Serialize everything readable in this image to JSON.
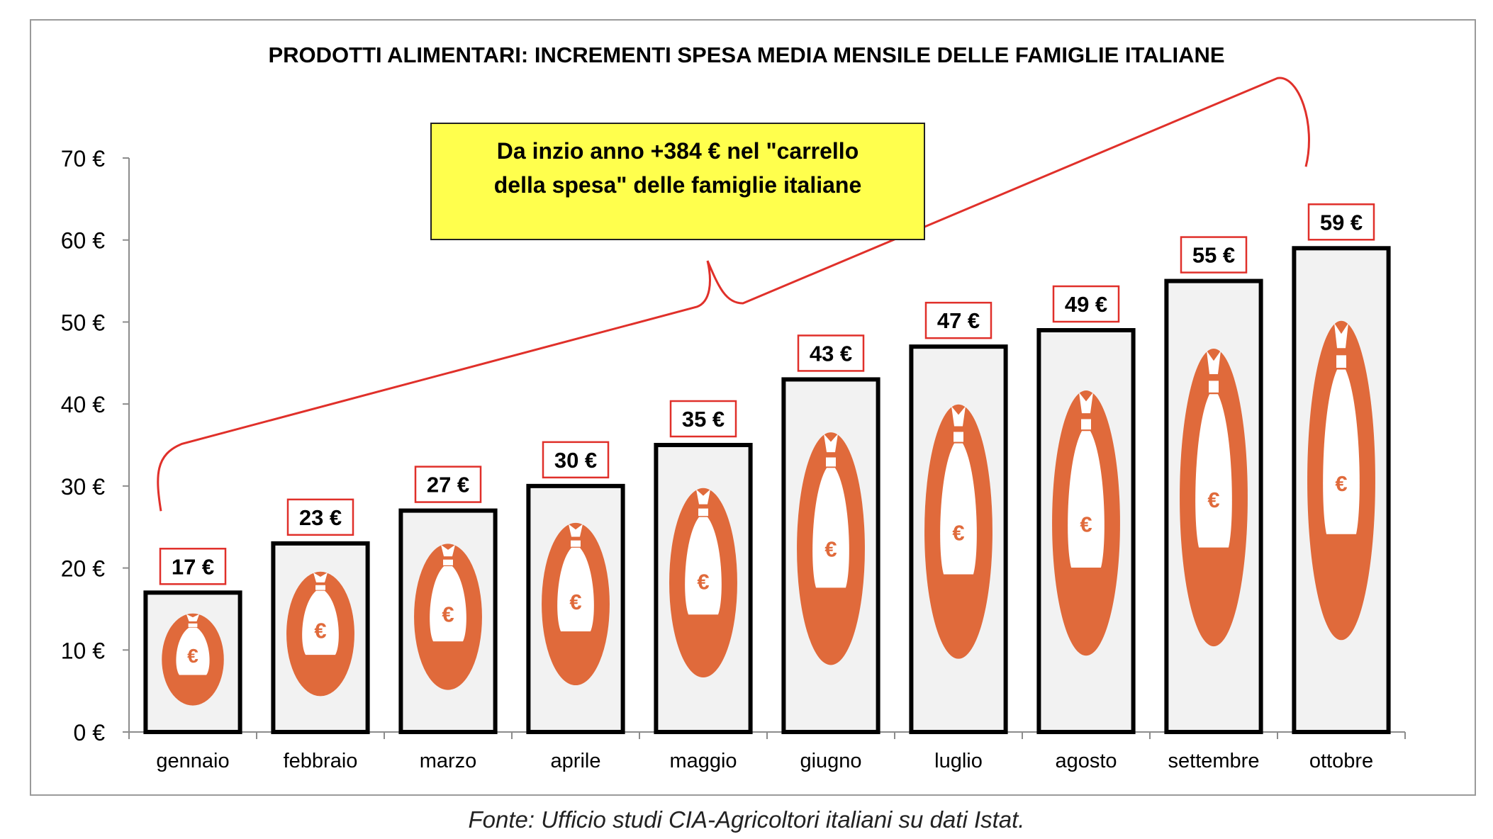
{
  "chart_data": {
    "type": "bar",
    "title": "PRODOTTI ALIMENTARI: INCREMENTI SPESA MEDIA MENSILE DELLE FAMIGLIE ITALIANE",
    "categories": [
      "gennaio",
      "febbraio",
      "marzo",
      "aprile",
      "maggio",
      "giugno",
      "luglio",
      "agosto",
      "settembre",
      "ottobre"
    ],
    "values": [
      17,
      23,
      27,
      30,
      35,
      43,
      47,
      49,
      55,
      59
    ],
    "data_labels": [
      "17 €",
      "23 €",
      "27 €",
      "30 €",
      "35 €",
      "43 €",
      "47 €",
      "49 €",
      "55 €",
      "59 €"
    ],
    "ylim": [
      0,
      70
    ],
    "yticks": [
      0,
      10,
      20,
      30,
      40,
      50,
      60,
      70
    ],
    "ytick_labels": [
      "0 €",
      "10 €",
      "20 €",
      "30 €",
      "40 €",
      "50 €",
      "60 €",
      "70 €"
    ],
    "xlabel": "",
    "ylabel": "",
    "grid": false,
    "annotation": {
      "line1": "Da inzio anno +384 €  nel \"carrello",
      "line2": "della spesa\" delle famiglie italiane"
    },
    "bar_icon": "money-bag-euro-icon",
    "colors": {
      "bar_fill": "#f2f2f2",
      "bar_border": "#000000",
      "icon": "#e06a3b",
      "label_border": "#e0302a",
      "bracket": "#e0302a",
      "annotation_fill": "#ffff4d"
    }
  },
  "source": "Fonte: Ufficio studi CIA-Agricoltori italiani su dati Istat."
}
